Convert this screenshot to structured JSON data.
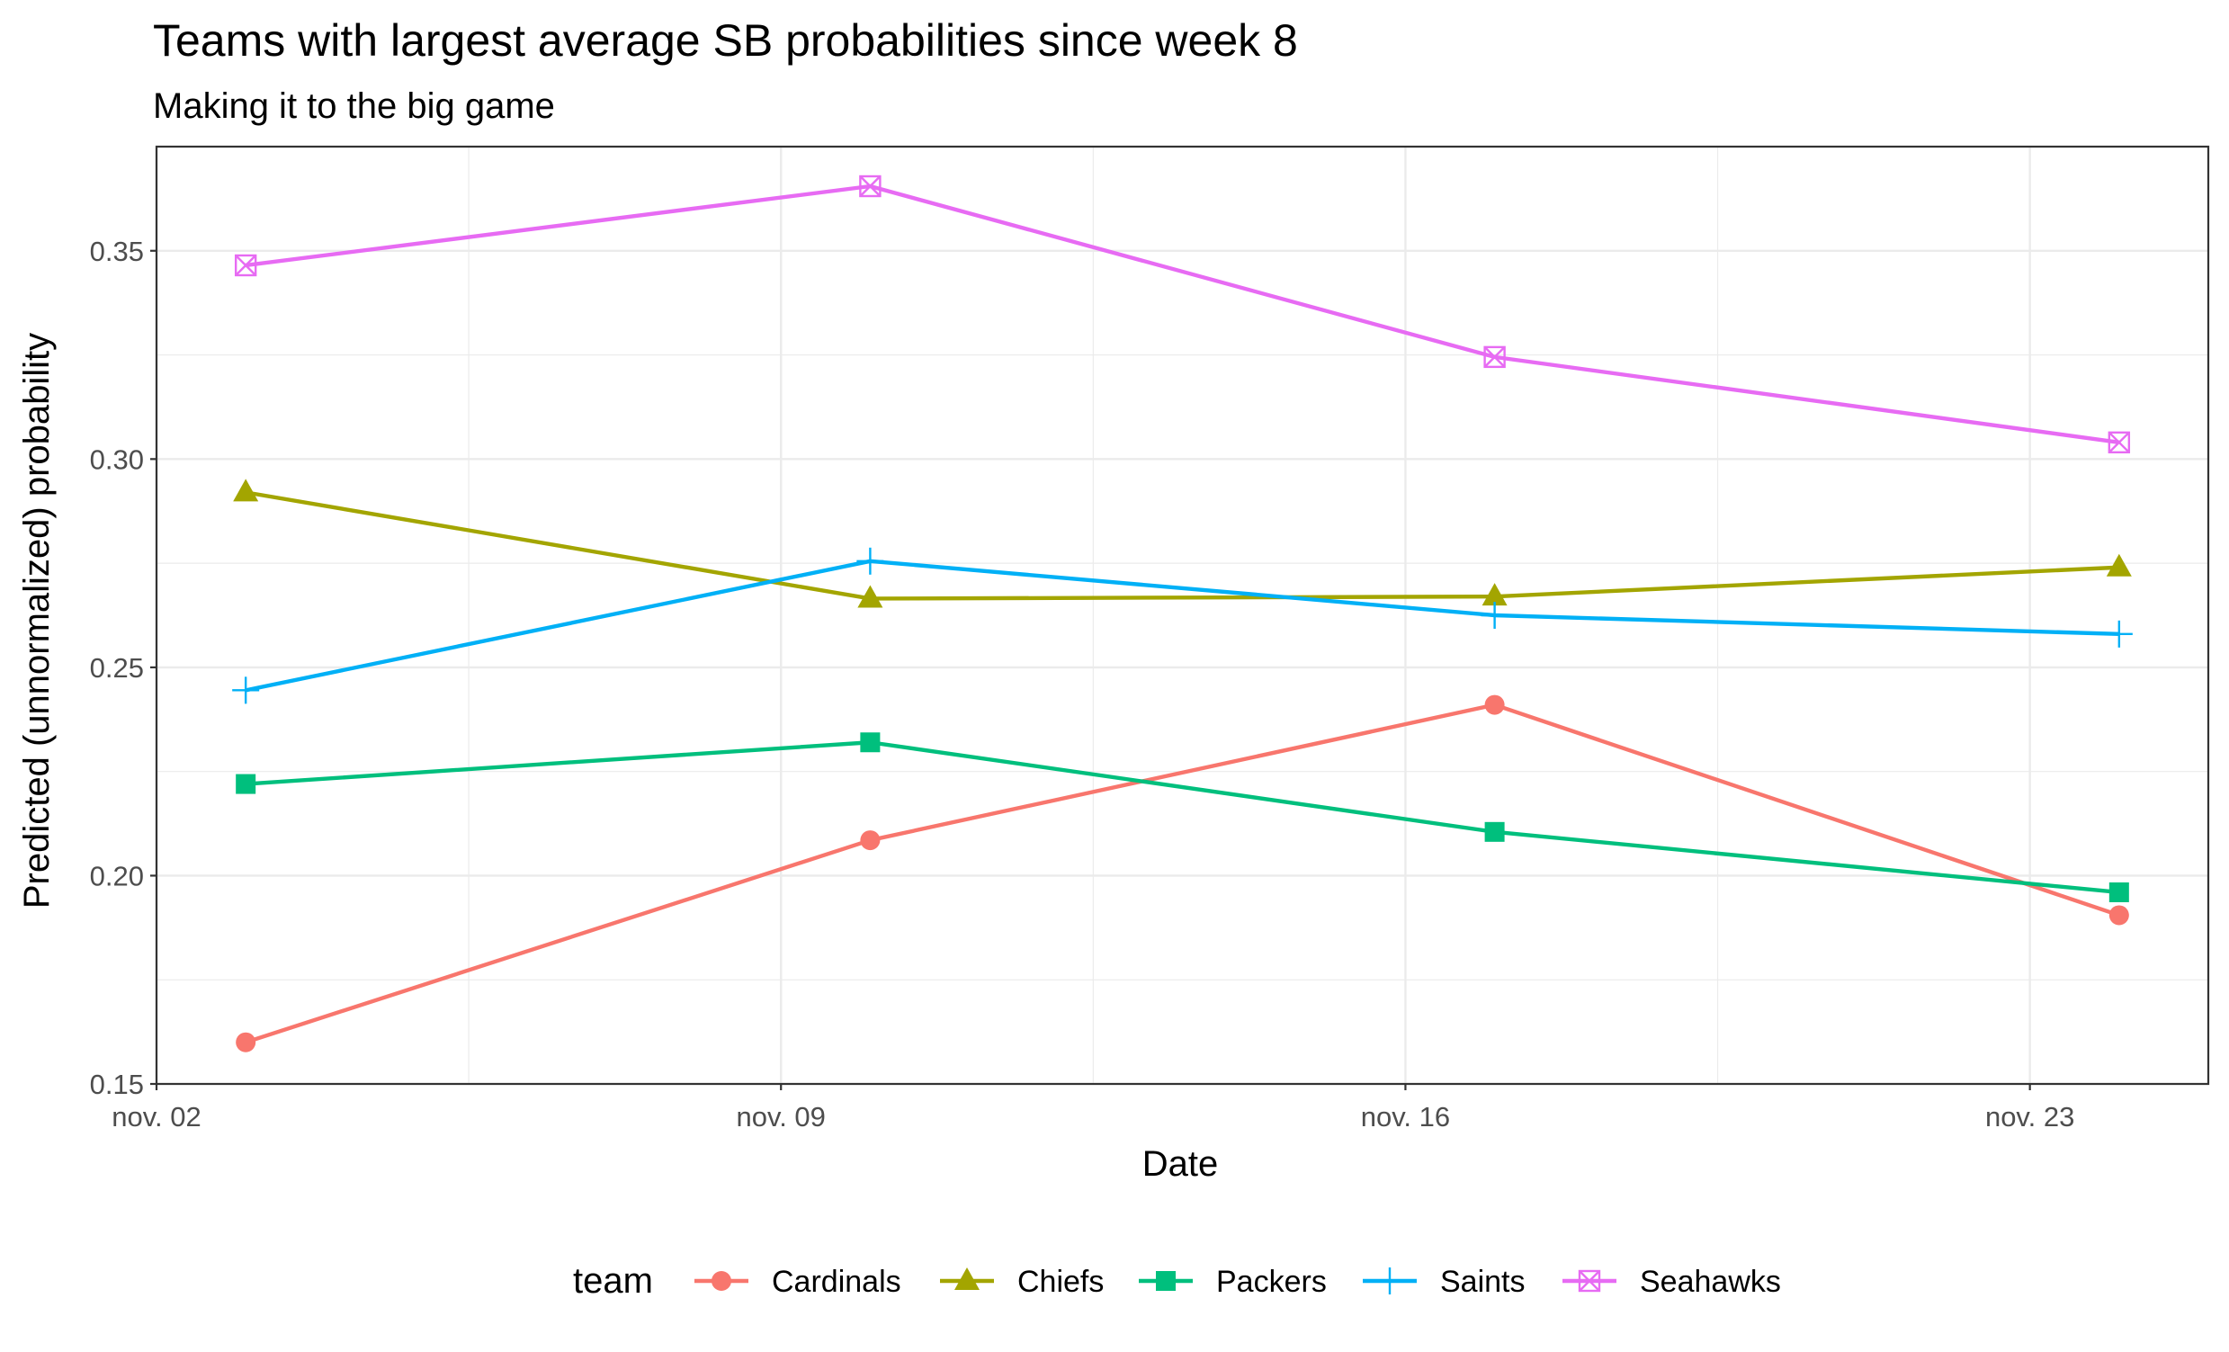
{
  "chart_data": {
    "type": "line",
    "title": "Teams with largest average SB probabilities since week 8",
    "subtitle": "Making it to the big game",
    "xlabel": "Date",
    "ylabel": "Predicted (unnormalized) probability",
    "x_ticks": [
      {
        "date": "2020-11-02",
        "label": "nov. 02"
      },
      {
        "date": "2020-11-09",
        "label": "nov. 09"
      },
      {
        "date": "2020-11-16",
        "label": "nov. 16"
      },
      {
        "date": "2020-11-23",
        "label": "nov. 23"
      }
    ],
    "y_ticks": [
      {
        "value": 0.15,
        "label": "0.15"
      },
      {
        "value": 0.2,
        "label": "0.20"
      },
      {
        "value": 0.25,
        "label": "0.25"
      },
      {
        "value": 0.3,
        "label": "0.30"
      },
      {
        "value": 0.35,
        "label": "0.35"
      }
    ],
    "xlim": [
      "2020-11-02",
      "2020-11-25"
    ],
    "ylim": [
      0.15,
      0.375
    ],
    "grid": true,
    "legend": {
      "title": "team",
      "position": "bottom"
    },
    "x": [
      "2020-11-03",
      "2020-11-10",
      "2020-11-17",
      "2020-11-24"
    ],
    "series": [
      {
        "name": "Cardinals",
        "color": "#F8766D",
        "shape": "circle",
        "values": [
          0.16,
          0.2085,
          0.241,
          0.1905
        ]
      },
      {
        "name": "Chiefs",
        "color": "#A3A500",
        "shape": "triangle",
        "values": [
          0.292,
          0.2665,
          0.267,
          0.274
        ]
      },
      {
        "name": "Packers",
        "color": "#00BF7D",
        "shape": "square",
        "values": [
          0.222,
          0.232,
          0.2105,
          0.196
        ]
      },
      {
        "name": "Saints",
        "color": "#00B0F6",
        "shape": "plus",
        "values": [
          0.2445,
          0.2755,
          0.2625,
          0.258
        ]
      },
      {
        "name": "Seahawks",
        "color": "#E76BF3",
        "shape": "square-cross",
        "values": [
          0.3465,
          0.3655,
          0.3245,
          0.304
        ]
      }
    ]
  }
}
